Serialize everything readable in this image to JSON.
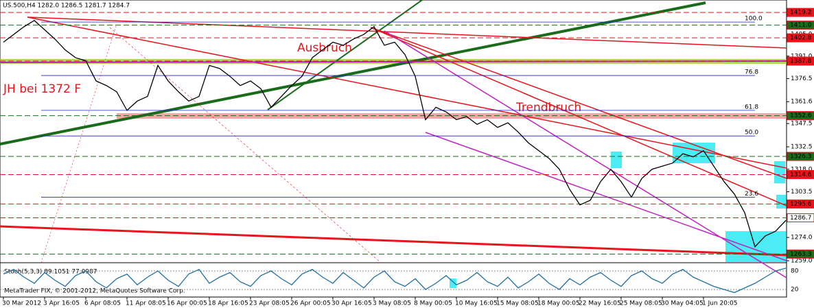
{
  "chart_data": {
    "type": "line",
    "title": "US.500,H4  1282.0 1286.5 1281.7 1284.7",
    "categories": [
      "30 Mar 2012",
      null,
      null,
      null,
      "3 Apr 16:05",
      null,
      null,
      null,
      "6 Apr 08:05",
      null,
      null,
      null,
      "11 Apr 08:05",
      null,
      null,
      null,
      "16 Apr 00:05",
      null,
      null,
      null,
      "18 Apr 16:05",
      null,
      null,
      null,
      "23 Apr 08:05",
      null,
      null,
      null,
      "26 Apr 00:05",
      null,
      null,
      null,
      "30 Apr 16:05",
      null,
      null,
      null,
      "3 May 08:05",
      null,
      null,
      null,
      "8 May 00:05",
      null,
      null,
      null,
      "10 May 16:05",
      null,
      null,
      null,
      "15 May 08:05",
      null,
      null,
      null,
      "18 May 00:05",
      null,
      null,
      null,
      "22 May 16:05",
      null,
      null,
      null,
      "25 May 08:05",
      null,
      null,
      null,
      "30 May 04:05",
      null,
      null,
      null,
      "1 Jun 20:05",
      null,
      null,
      null,
      null,
      null,
      null,
      null,
      null
    ],
    "series": [
      {
        "name": "US.500",
        "color": "#000000",
        "values": [
          1400,
          1405,
          1410,
          1414,
          1408,
          1402,
          1395,
          1390,
          1388,
          1375,
          1372,
          1368,
          1356,
          1362,
          1365,
          1385,
          1375,
          1368,
          1362,
          1365,
          1385,
          1383,
          1378,
          1372,
          1375,
          1370,
          1358,
          1365,
          1372,
          1378,
          1390,
          1395,
          1400,
          1398,
          1402,
          1405,
          1410,
          1398,
          1400,
          1392,
          1378,
          1350,
          1358,
          1355,
          1350,
          1352,
          1347,
          1350,
          1345,
          1348,
          1342,
          1335,
          1330,
          1325,
          1318,
          1305,
          1295,
          1298,
          1310,
          1318,
          1310,
          1300,
          1312,
          1318,
          1320,
          1322,
          1328,
          1326,
          1330,
          1320,
          1310,
          1302,
          1290,
          1268,
          1275,
          1278,
          1285
        ]
      }
    ],
    "ylim": [
      1257.7,
      1425
    ],
    "yticks": [
      {
        "value": 1405,
        "label": "1405.0"
      },
      {
        "value": 1391,
        "label": "1391.0"
      },
      1376.5,
      1361.6,
      1347.5,
      1332.5,
      {
        "value": 1318,
        "label": "1318.0"
      },
      1303.5,
      {
        "value": 1274,
        "label": "1274.0"
      },
      {
        "value": 1259,
        "label": "1259.0"
      }
    ],
    "levels": [
      {
        "value": 1419.2,
        "color": "#e8141b"
      },
      {
        "value": 1411,
        "label": "1411.0",
        "color": "#1a6b1a"
      },
      {
        "value": 1402.8,
        "color": "#e8141b"
      },
      {
        "value": 1387.8,
        "color": "#e8141b"
      },
      {
        "value": 1352.6,
        "color": "#1a6b1a"
      },
      {
        "value": 1326.3,
        "color": "#1a6b1a"
      },
      {
        "value": 1314.6,
        "color": "#e8141b"
      },
      {
        "value": 1295.6,
        "color": "#e8141b"
      },
      {
        "value": 1286.7,
        "color": "#ffffff"
      },
      {
        "value": 1263.3,
        "color": "#1a6b1a"
      }
    ],
    "fib_levels": [
      {
        "label": "100.0",
        "value": 1413
      },
      {
        "label": "76.8",
        "value": 1378.5
      },
      {
        "label": "61.8",
        "value": 1356
      },
      {
        "label": "50.0",
        "value": 1339.5
      },
      {
        "label": "23.6",
        "value": 1300
      }
    ],
    "annotations": [
      "JH bei 1372 F",
      "Ausbruch",
      "Trendbruch"
    ],
    "stoch": {
      "title": "Stoch(5,3,3) 89.1051 77.0987",
      "color": "#1f6fa0",
      "ylim": [
        0,
        100
      ],
      "yticks": [
        80,
        20
      ],
      "values": [
        70,
        85,
        60,
        40,
        75,
        50,
        30,
        65,
        80,
        45,
        25,
        55,
        70,
        35,
        60,
        80,
        50,
        30,
        70,
        85,
        40,
        60,
        75,
        45,
        30,
        65,
        80,
        55,
        35,
        70,
        85,
        60,
        40,
        75,
        50,
        25,
        60,
        80,
        45,
        30,
        55,
        20,
        40,
        65,
        35,
        50,
        75,
        45,
        30,
        60,
        25,
        45,
        70,
        40,
        20,
        55,
        35,
        60,
        75,
        50,
        30,
        65,
        80,
        55,
        40,
        70,
        85,
        60,
        45,
        30,
        20,
        10,
        25,
        40,
        60,
        80,
        89.1
      ]
    },
    "footer": "MetaTrader FIX, © 2001-2012, MetaQuotes Software Corp."
  }
}
